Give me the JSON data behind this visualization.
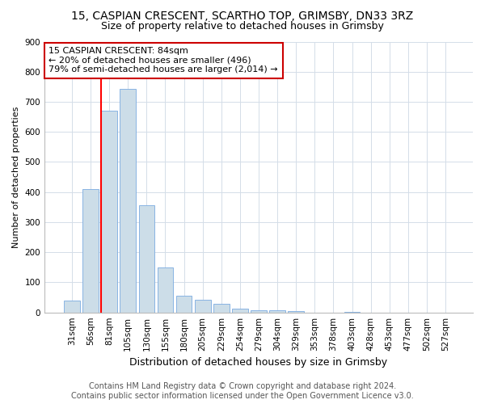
{
  "title1": "15, CASPIAN CRESCENT, SCARTHO TOP, GRIMSBY, DN33 3RZ",
  "title2": "Size of property relative to detached houses in Grimsby",
  "xlabel": "Distribution of detached houses by size in Grimsby",
  "ylabel": "Number of detached properties",
  "categories": [
    "31sqm",
    "56sqm",
    "81sqm",
    "105sqm",
    "130sqm",
    "155sqm",
    "180sqm",
    "205sqm",
    "229sqm",
    "254sqm",
    "279sqm",
    "304sqm",
    "329sqm",
    "353sqm",
    "378sqm",
    "403sqm",
    "428sqm",
    "453sqm",
    "477sqm",
    "502sqm",
    "527sqm"
  ],
  "values": [
    40,
    410,
    670,
    742,
    355,
    150,
    55,
    42,
    28,
    12,
    8,
    8,
    5,
    0,
    0,
    3,
    0,
    0,
    0,
    0,
    0
  ],
  "highlight_index": 2,
  "bar_color": "#ccdde8",
  "bar_edge_color": "#7aabe0",
  "grid_color": "#d4dde8",
  "annotation_text": "15 CASPIAN CRESCENT: 84sqm\n← 20% of detached houses are smaller (496)\n79% of semi-detached houses are larger (2,014) →",
  "annotation_box_edgecolor": "#cc0000",
  "footnote": "Contains HM Land Registry data © Crown copyright and database right 2024.\nContains public sector information licensed under the Open Government Licence v3.0.",
  "ylim": [
    0,
    900
  ],
  "yticks": [
    0,
    100,
    200,
    300,
    400,
    500,
    600,
    700,
    800,
    900
  ],
  "title1_fontsize": 10,
  "title2_fontsize": 9,
  "xlabel_fontsize": 9,
  "ylabel_fontsize": 8,
  "tick_fontsize": 7.5,
  "annotation_fontsize": 8,
  "footnote_fontsize": 7
}
